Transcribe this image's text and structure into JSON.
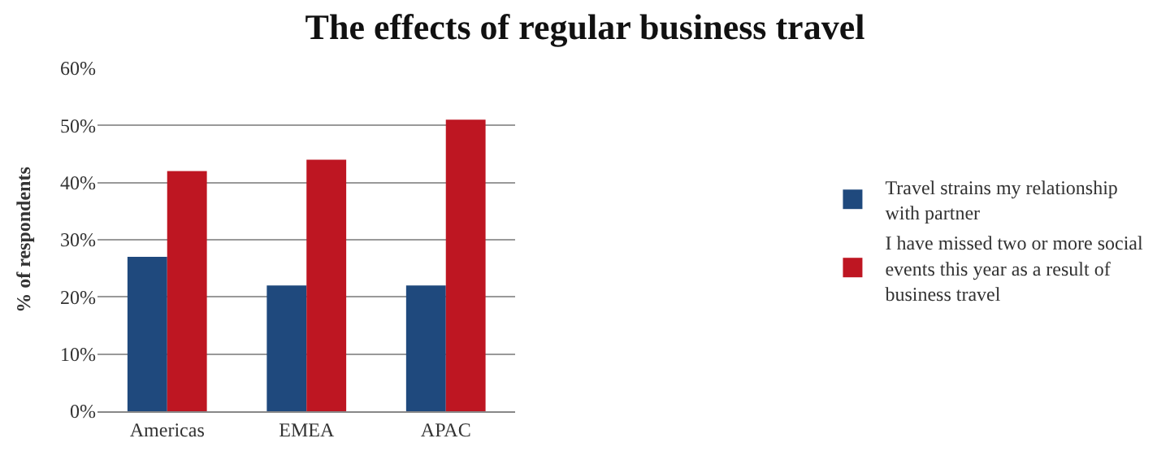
{
  "chart_data": {
    "type": "bar",
    "title": "The effects of regular business travel",
    "ylabel": "% of respondents",
    "categories": [
      "Americas",
      "EMEA",
      "APAC"
    ],
    "series": [
      {
        "name": "Travel strains my relationship with partner",
        "color": "#1f497d",
        "values": [
          27,
          22,
          22
        ]
      },
      {
        "name": "I have missed two or more social events this year as a result of business travel",
        "color": "#be1622",
        "values": [
          42,
          44,
          51
        ]
      }
    ],
    "ylim": [
      0,
      60
    ],
    "yticks": [
      {
        "value": 0,
        "label": "0%"
      },
      {
        "value": 10,
        "label": "10%"
      },
      {
        "value": 20,
        "label": "20%"
      },
      {
        "value": 30,
        "label": "30%"
      },
      {
        "value": 40,
        "label": "40%"
      },
      {
        "value": 50,
        "label": "50%"
      },
      {
        "value": 60,
        "label": "60%"
      }
    ],
    "grid": "y",
    "legend": "right"
  }
}
